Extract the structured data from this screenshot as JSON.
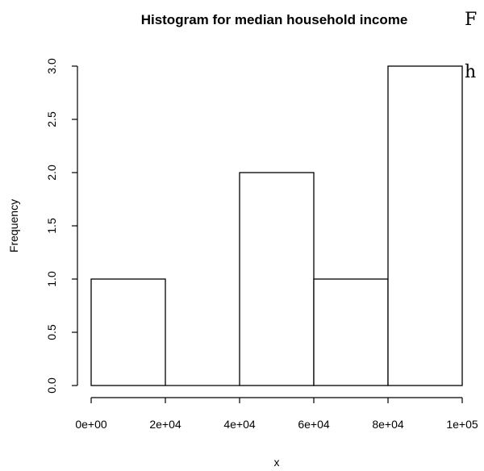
{
  "chart_data": {
    "type": "bar",
    "title": "Histogram for median household income",
    "xlabel": "x",
    "ylabel": "Frequency",
    "bins": [
      {
        "from": 0,
        "to": 20000,
        "count": 1
      },
      {
        "from": 20000,
        "to": 40000,
        "count": 0
      },
      {
        "from": 40000,
        "to": 60000,
        "count": 2
      },
      {
        "from": 60000,
        "to": 80000,
        "count": 1
      },
      {
        "from": 80000,
        "to": 100000,
        "count": 3
      }
    ],
    "xlim": [
      0,
      100000
    ],
    "ylim": [
      0,
      3
    ],
    "x_ticks": [
      {
        "value": 0,
        "label": "0e+00"
      },
      {
        "value": 20000,
        "label": "2e+04"
      },
      {
        "value": 40000,
        "label": "4e+04"
      },
      {
        "value": 60000,
        "label": "6e+04"
      },
      {
        "value": 80000,
        "label": "8e+04"
      },
      {
        "value": 100000,
        "label": "1e+05"
      }
    ],
    "y_ticks": [
      {
        "value": 0,
        "label": "0.0"
      },
      {
        "value": 0.5,
        "label": "0.5"
      },
      {
        "value": 1,
        "label": "1.0"
      },
      {
        "value": 1.5,
        "label": "1.5"
      },
      {
        "value": 2,
        "label": "2.0"
      },
      {
        "value": 2.5,
        "label": "2.5"
      },
      {
        "value": 3,
        "label": "3.0"
      }
    ],
    "grid": false,
    "colors": {
      "bar_fill": "#ffffff",
      "bar_stroke": "#000000"
    }
  },
  "side_text": {
    "line1": "F",
    "line2": "h"
  }
}
